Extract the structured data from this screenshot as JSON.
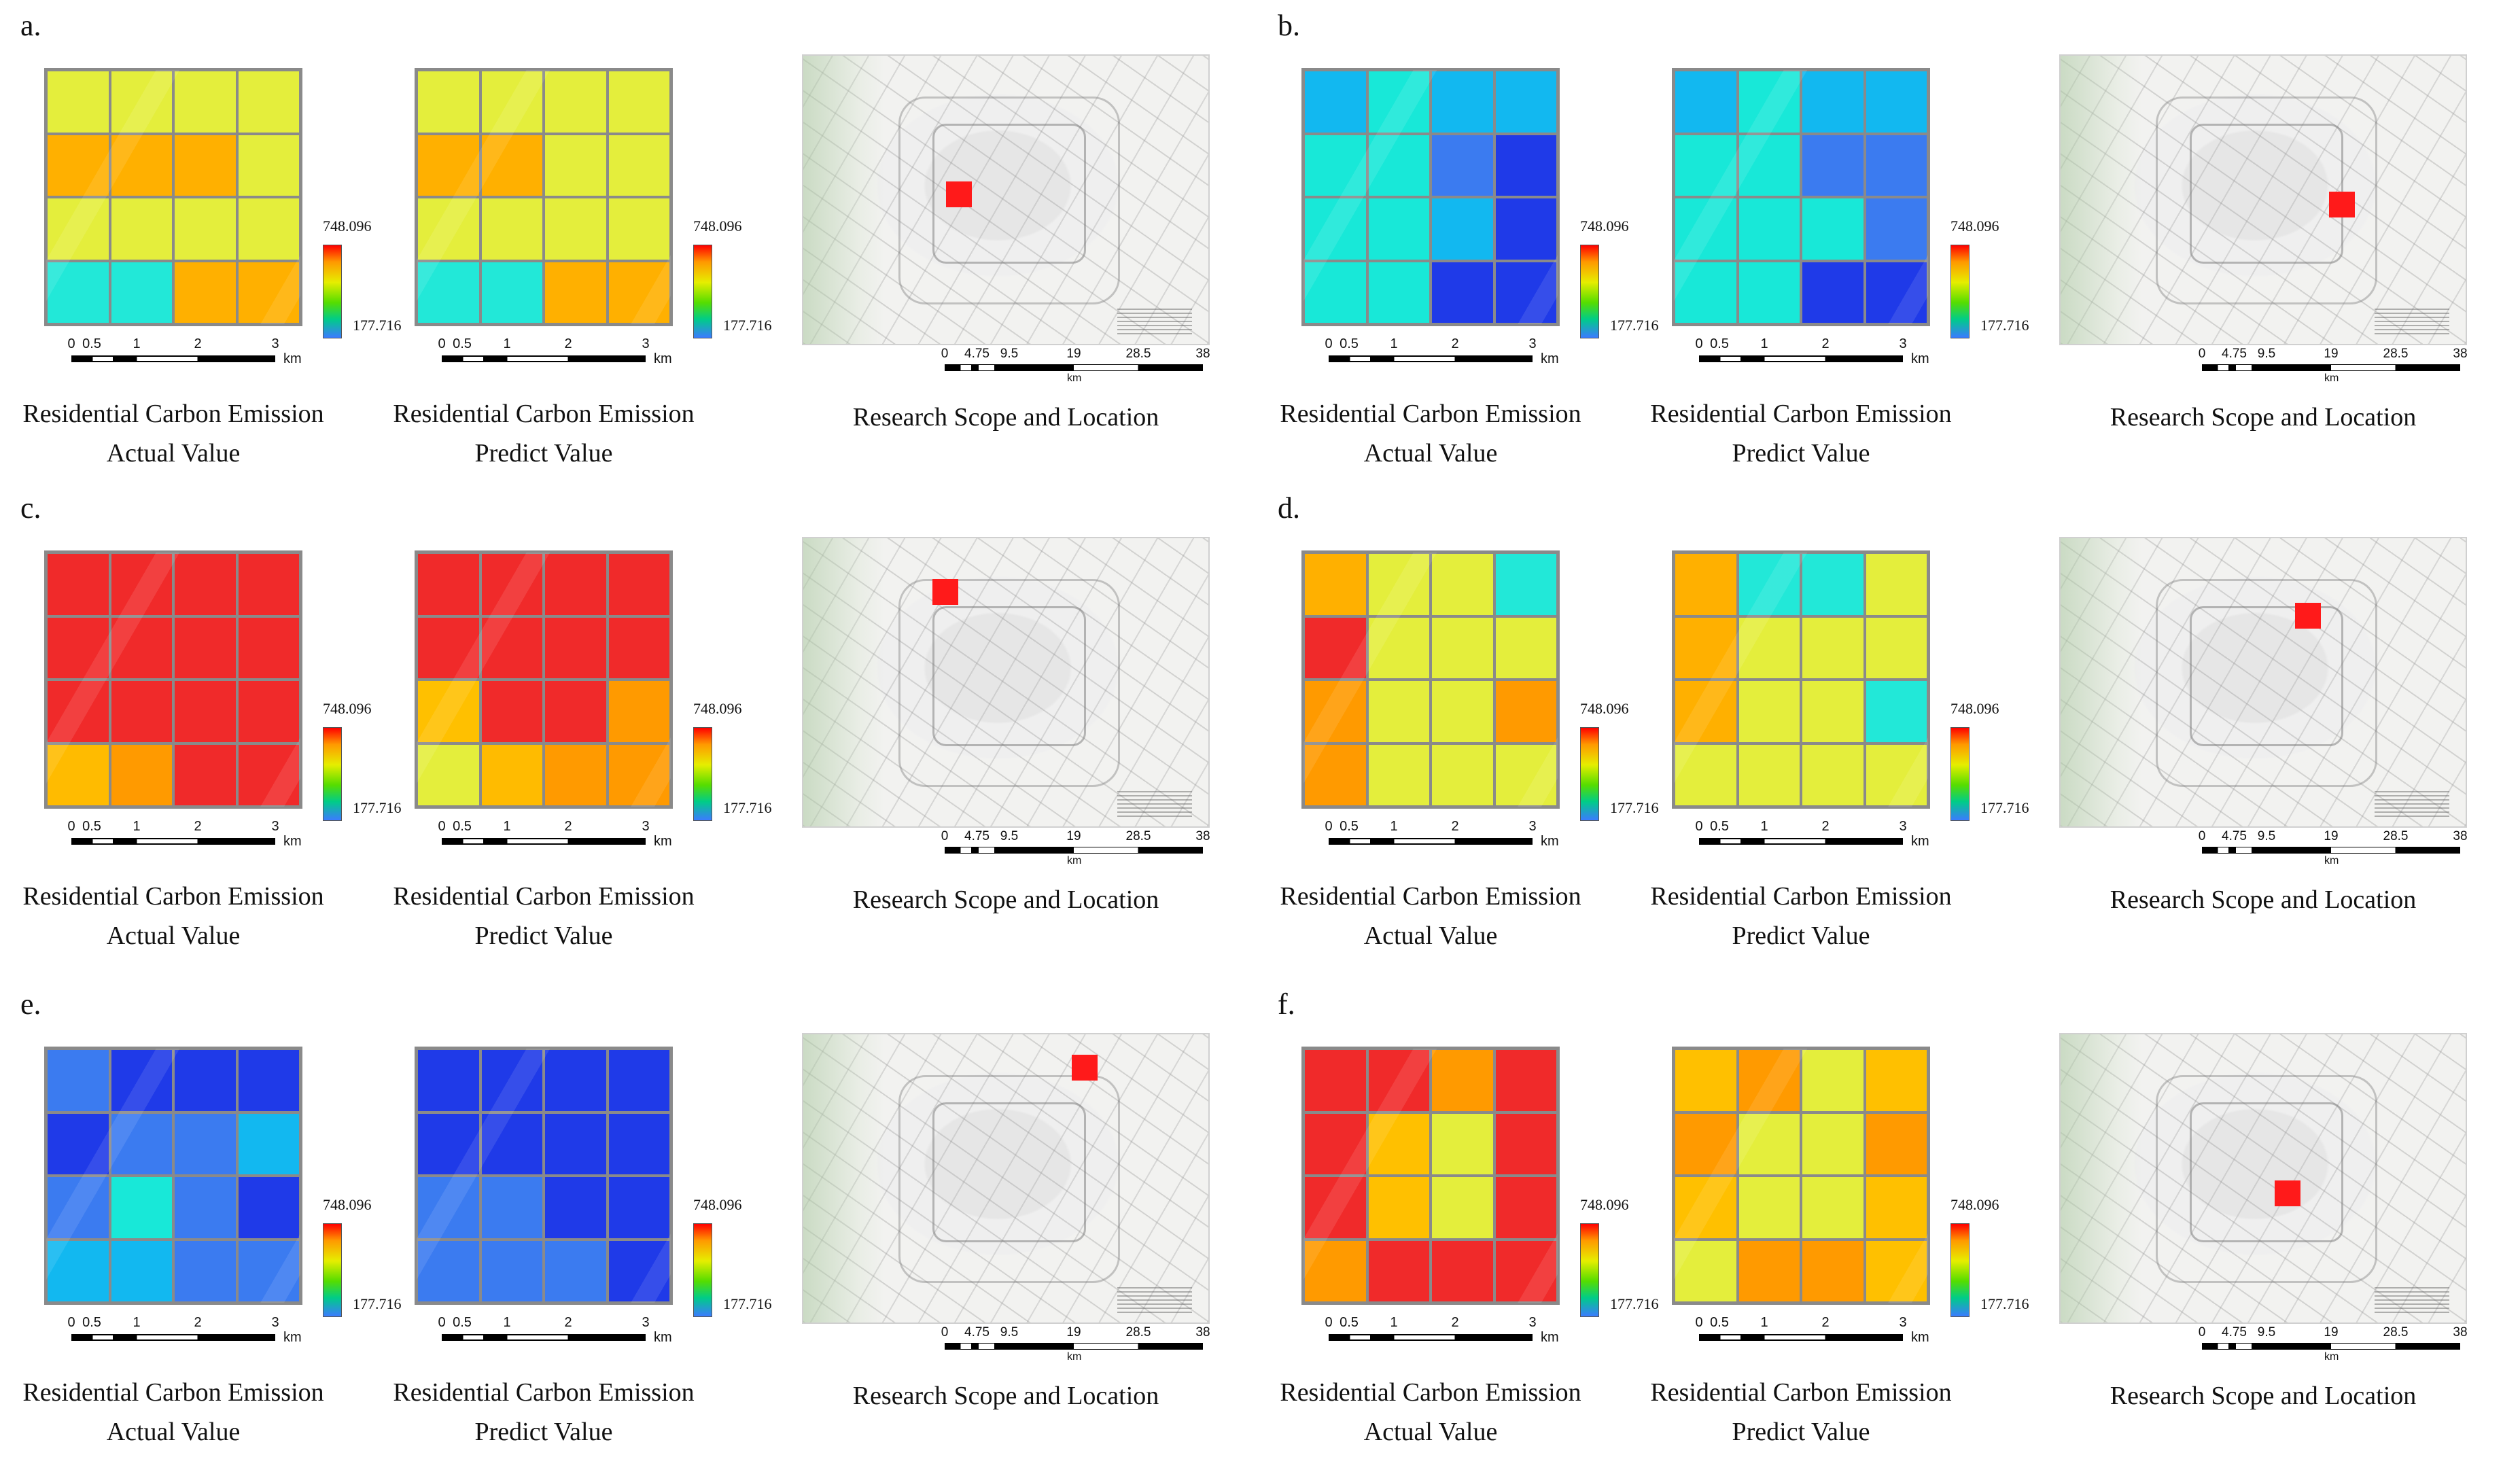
{
  "chart_data": {
    "type": "heatmap",
    "title": "",
    "colorbar": {
      "max": "748.096",
      "min": "177.716",
      "colors": [
        "#ff0000",
        "#ff9900",
        "#e6ee00",
        "#55dd00",
        "#00cc88",
        "#3b7bff"
      ]
    },
    "panels": [
      {
        "label": "a.",
        "actual": [
          [
            "#e4ee3c",
            "#e4ee3c",
            "#e4ee3c",
            "#e4ee3c"
          ],
          [
            "#ffb000",
            "#ffb000",
            "#ffb000",
            "#e4ee3c"
          ],
          [
            "#e4ee3c",
            "#e4ee3c",
            "#e4ee3c",
            "#e4ee3c"
          ],
          [
            "#22e8d8",
            "#22e8d8",
            "#ffb000",
            "#ffb000"
          ]
        ],
        "predict": [
          [
            "#e4ee3c",
            "#e4ee3c",
            "#e4ee3c",
            "#e4ee3c"
          ],
          [
            "#ffb000",
            "#ffb000",
            "#e4ee3c",
            "#e4ee3c"
          ],
          [
            "#e4ee3c",
            "#e4ee3c",
            "#e4ee3c",
            "#e4ee3c"
          ],
          [
            "#22e8d8",
            "#22e8d8",
            "#ffb000",
            "#ffb000"
          ]
        ]
      },
      {
        "label": "b.",
        "actual": [
          [
            "#12b8f0",
            "#18e8d8",
            "#12b8f0",
            "#12b8f0"
          ],
          [
            "#18e8d8",
            "#18e8d8",
            "#3b7bf0",
            "#1f3ae8"
          ],
          [
            "#18e8d8",
            "#18e8d8",
            "#12b8f0",
            "#1f3ae8"
          ],
          [
            "#18e8d8",
            "#18e8d8",
            "#1f3ae8",
            "#1f3ae8"
          ]
        ],
        "predict": [
          [
            "#12b8f0",
            "#18e8d8",
            "#12b8f0",
            "#12b8f0"
          ],
          [
            "#18e8d8",
            "#18e8d8",
            "#3b7bf0",
            "#3b7bf0"
          ],
          [
            "#18e8d8",
            "#18e8d8",
            "#18e8d8",
            "#3b7bf0"
          ],
          [
            "#18e8d8",
            "#18e8d8",
            "#1f3ae8",
            "#1f3ae8"
          ]
        ]
      },
      {
        "label": "c.",
        "actual": [
          [
            "#f02a2a",
            "#f02a2a",
            "#f02a2a",
            "#f02a2a"
          ],
          [
            "#f02a2a",
            "#f02a2a",
            "#f02a2a",
            "#f02a2a"
          ],
          [
            "#f02a2a",
            "#f02a2a",
            "#f02a2a",
            "#f02a2a"
          ],
          [
            "#ffbb00",
            "#ff9a00",
            "#f02a2a",
            "#f02a2a"
          ]
        ],
        "predict": [
          [
            "#f02a2a",
            "#f02a2a",
            "#f02a2a",
            "#f02a2a"
          ],
          [
            "#f02a2a",
            "#f02a2a",
            "#f02a2a",
            "#f02a2a"
          ],
          [
            "#ffc000",
            "#f02a2a",
            "#f02a2a",
            "#ff9a00"
          ],
          [
            "#e4ee3c",
            "#ffbb00",
            "#ff9a00",
            "#ff9a00"
          ]
        ]
      },
      {
        "label": "d.",
        "actual": [
          [
            "#ffb000",
            "#e4ee3c",
            "#e4ee3c",
            "#22e8d8"
          ],
          [
            "#f02a2a",
            "#e4ee3c",
            "#e4ee3c",
            "#e4ee3c"
          ],
          [
            "#ff9a00",
            "#e4ee3c",
            "#e4ee3c",
            "#ff9a00"
          ],
          [
            "#ff9a00",
            "#e4ee3c",
            "#e4ee3c",
            "#e4ee3c"
          ]
        ],
        "predict": [
          [
            "#ffb000",
            "#22e8d8",
            "#22e8d8",
            "#e4ee3c"
          ],
          [
            "#ffb000",
            "#e4ee3c",
            "#e4ee3c",
            "#e4ee3c"
          ],
          [
            "#ffb000",
            "#e4ee3c",
            "#e4ee3c",
            "#22e8d8"
          ],
          [
            "#e4ee3c",
            "#e4ee3c",
            "#e4ee3c",
            "#e4ee3c"
          ]
        ]
      },
      {
        "label": "e.",
        "actual": [
          [
            "#3b7bf0",
            "#1f3ae8",
            "#1f3ae8",
            "#1f3ae8"
          ],
          [
            "#1f3ae8",
            "#3b7bf0",
            "#3b7bf0",
            "#12b8f0"
          ],
          [
            "#3b7bf0",
            "#18e8d8",
            "#3b7bf0",
            "#1f3ae8"
          ],
          [
            "#12b8f0",
            "#12b8f0",
            "#3b7bf0",
            "#3b7bf0"
          ]
        ],
        "predict": [
          [
            "#1f3ae8",
            "#1f3ae8",
            "#1f3ae8",
            "#1f3ae8"
          ],
          [
            "#1f3ae8",
            "#1f3ae8",
            "#1f3ae8",
            "#1f3ae8"
          ],
          [
            "#3b7bf0",
            "#3b7bf0",
            "#1f3ae8",
            "#1f3ae8"
          ],
          [
            "#3b7bf0",
            "#3b7bf0",
            "#3b7bf0",
            "#1f3ae8"
          ]
        ]
      },
      {
        "label": "f.",
        "actual": [
          [
            "#f02a2a",
            "#f02a2a",
            "#ff9a00",
            "#f02a2a"
          ],
          [
            "#f02a2a",
            "#ffc000",
            "#e4ee3c",
            "#f02a2a"
          ],
          [
            "#f02a2a",
            "#ffc000",
            "#e4ee3c",
            "#f02a2a"
          ],
          [
            "#ff9a00",
            "#f02a2a",
            "#f02a2a",
            "#f02a2a"
          ]
        ],
        "predict": [
          [
            "#ffc000",
            "#ff9a00",
            "#e4ee3c",
            "#ffc000"
          ],
          [
            "#ff9a00",
            "#e4ee3c",
            "#e4ee3c",
            "#ff9a00"
          ],
          [
            "#ffc000",
            "#e4ee3c",
            "#e4ee3c",
            "#ffc000"
          ],
          [
            "#e4ee3c",
            "#ff9a00",
            "#ff9a00",
            "#ffc000"
          ]
        ]
      }
    ]
  },
  "scalebar": {
    "ticks": [
      "0",
      "0.5",
      "1",
      "2",
      "3"
    ],
    "unit": "km"
  },
  "map_scalebar": {
    "ticks": [
      "0",
      "4.75",
      "9.5",
      "19",
      "28.5",
      "38"
    ],
    "unit": "km"
  },
  "captions": {
    "actual": [
      "Residential Carbon Emission",
      "Actual Value"
    ],
    "predict": [
      "Residential Carbon Emission",
      "Predict Value"
    ],
    "scope": "Research Scope and Location"
  }
}
